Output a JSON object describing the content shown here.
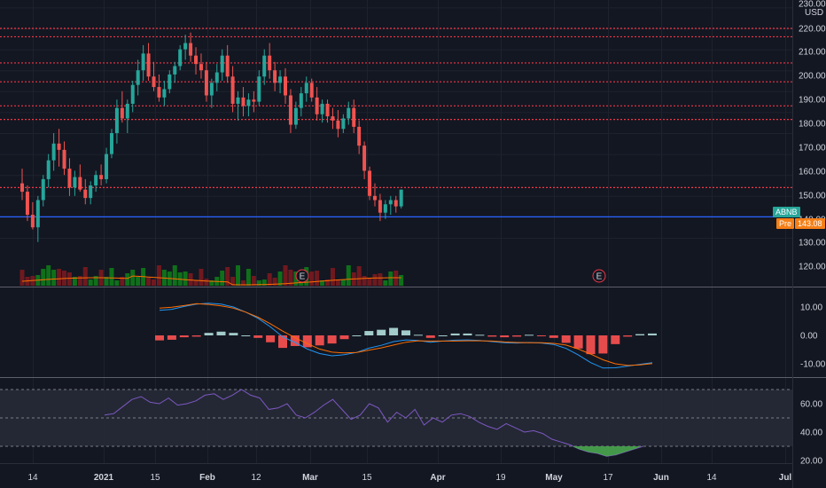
{
  "axis": {
    "currency": "USD",
    "price_ticks": [
      "230.00",
      "220.00",
      "210.00",
      "200.00",
      "190.00",
      "180.00",
      "170.00",
      "160.00",
      "150.00",
      "140.00",
      "130.00",
      "120.00"
    ],
    "macd_ticks": [
      "10.00",
      "0.00",
      "-10.00"
    ],
    "rsi_ticks": [
      "60.00",
      "40.00",
      "20.00"
    ],
    "time_ticks": [
      "14",
      "2021",
      "15",
      "Feb",
      "12",
      "Mar",
      "15",
      "Apr",
      "19",
      "May",
      "17",
      "Jun",
      "14",
      "Jul"
    ]
  },
  "labels": {
    "symbol": "ABNB",
    "pre_label": "Pre",
    "pre_price": "143.08",
    "earnings_marker": "E"
  },
  "colors": {
    "bg": "#131722",
    "up": "#26a69a",
    "down": "#ef5350",
    "support_line": "#2962ff",
    "resistance_line": "#f23645",
    "macd_line": "#2196f3",
    "signal_line": "#ff6d00",
    "rsi_line": "#7e57c2",
    "volume_up": "#0f7a1a",
    "volume_down": "#7a1a1f",
    "pre_tag": "#f57f17",
    "symbol_tag": "#26a69a"
  },
  "chart_data": {
    "type": "candlestick",
    "symbol": "ABNB",
    "resistance_levels": [
      220,
      216,
      203.5,
      194.5,
      183,
      176.5,
      144
    ],
    "support_level": 130,
    "candles": [
      [
        146,
        153,
        138,
        142
      ],
      [
        142,
        145,
        128,
        131
      ],
      [
        131,
        137,
        124,
        125
      ],
      [
        125,
        140,
        118,
        138
      ],
      [
        138,
        150,
        135,
        148
      ],
      [
        148,
        160,
        144,
        157
      ],
      [
        157,
        170,
        152,
        165
      ],
      [
        165,
        172,
        154,
        162
      ],
      [
        162,
        166,
        150,
        153
      ],
      [
        153,
        158,
        140,
        144
      ],
      [
        144,
        152,
        140,
        149
      ],
      [
        149,
        155,
        142,
        143
      ],
      [
        143,
        148,
        136,
        139
      ],
      [
        139,
        147,
        136,
        145
      ],
      [
        145,
        152,
        142,
        150
      ],
      [
        150,
        155,
        145,
        148
      ],
      [
        148,
        163,
        146,
        160
      ],
      [
        160,
        172,
        158,
        170
      ],
      [
        170,
        186,
        165,
        182
      ],
      [
        182,
        190,
        175,
        177
      ],
      [
        177,
        186,
        170,
        184
      ],
      [
        184,
        195,
        180,
        193
      ],
      [
        193,
        205,
        188,
        200
      ],
      [
        200,
        212,
        195,
        208
      ],
      [
        208,
        213,
        195,
        197
      ],
      [
        197,
        204,
        190,
        192
      ],
      [
        192,
        198,
        185,
        187
      ],
      [
        187,
        195,
        183,
        191
      ],
      [
        191,
        200,
        189,
        198
      ],
      [
        198,
        204,
        194,
        202
      ],
      [
        202,
        212,
        200,
        210
      ],
      [
        210,
        217,
        205,
        213
      ],
      [
        213,
        218,
        204,
        207
      ],
      [
        207,
        211,
        198,
        203
      ],
      [
        203,
        208,
        196,
        200
      ],
      [
        200,
        204,
        185,
        188
      ],
      [
        188,
        196,
        182,
        194
      ],
      [
        194,
        203,
        190,
        199
      ],
      [
        199,
        210,
        195,
        207
      ],
      [
        207,
        212,
        194,
        197
      ],
      [
        197,
        202,
        180,
        184
      ],
      [
        184,
        190,
        176,
        187
      ],
      [
        187,
        192,
        178,
        183
      ],
      [
        183,
        189,
        178,
        186
      ],
      [
        186,
        190,
        180,
        185
      ],
      [
        185,
        200,
        183,
        197
      ],
      [
        197,
        210,
        193,
        207
      ],
      [
        207,
        213,
        196,
        200
      ],
      [
        200,
        204,
        190,
        194
      ],
      [
        194,
        200,
        189,
        197
      ],
      [
        197,
        201,
        184,
        188
      ],
      [
        188,
        191,
        170,
        174
      ],
      [
        174,
        185,
        172,
        182
      ],
      [
        182,
        192,
        178,
        189
      ],
      [
        189,
        197,
        185,
        194
      ],
      [
        194,
        196,
        185,
        187
      ],
      [
        187,
        192,
        176,
        179
      ],
      [
        179,
        186,
        175,
        184
      ],
      [
        184,
        186,
        175,
        178
      ],
      [
        178,
        182,
        172,
        176
      ],
      [
        176,
        181,
        168,
        172
      ],
      [
        172,
        179,
        170,
        177
      ],
      [
        177,
        185,
        174,
        182
      ],
      [
        182,
        186,
        170,
        173
      ],
      [
        173,
        176,
        160,
        164
      ],
      [
        164,
        166,
        148,
        152
      ],
      [
        152,
        154,
        138,
        140
      ],
      [
        140,
        146,
        135,
        138
      ],
      [
        138,
        141,
        128,
        132
      ],
      [
        132,
        138,
        129,
        136
      ],
      [
        136,
        140,
        131,
        138
      ],
      [
        138,
        140,
        132,
        135
      ],
      [
        135,
        143,
        134,
        143
      ]
    ],
    "macd": [
      8.8,
      9.2,
      10.2,
      11.0,
      11.3,
      11.0,
      10.0,
      8.2,
      6.0,
      3.0,
      -0.5,
      -2.5,
      -4.8,
      -6.4,
      -7.2,
      -6.8,
      -6.0,
      -4.5,
      -3.5,
      -2.2,
      -1.6,
      -1.8,
      -2.4,
      -2.0,
      -1.7,
      -1.6,
      -1.8,
      -2.2,
      -2.6,
      -2.7,
      -2.5,
      -2.7,
      -3.2,
      -4.6,
      -6.9,
      -9.6,
      -11.5,
      -11.4,
      -10.8,
      -10.2,
      -9.6
    ],
    "signal": [
      9.6,
      9.9,
      10.5,
      11.2,
      10.9,
      10.4,
      9.6,
      8.2,
      6.4,
      4.1,
      1.5,
      -0.8,
      -2.9,
      -4.8,
      -5.9,
      -6.2,
      -6.0,
      -5.2,
      -4.4,
      -3.4,
      -2.4,
      -1.9,
      -2.0,
      -2.0,
      -2.0,
      -1.9,
      -1.9,
      -2.0,
      -2.3,
      -2.5,
      -2.6,
      -2.6,
      -2.8,
      -3.4,
      -4.8,
      -6.6,
      -8.6,
      -10.0,
      -10.6,
      -10.4,
      -9.9
    ],
    "rsi": [
      52,
      53,
      58,
      63,
      65,
      61,
      60,
      64,
      59,
      60,
      62,
      66,
      67,
      63,
      66,
      70,
      66,
      64,
      56,
      57,
      60,
      52,
      50,
      54,
      59,
      63,
      56,
      49,
      52,
      60,
      57,
      47,
      54,
      50,
      56,
      45,
      50,
      47,
      52,
      53,
      51,
      47,
      44,
      42,
      46,
      43,
      40,
      41,
      39,
      35,
      33,
      31,
      28,
      26,
      25,
      23,
      24,
      26,
      28,
      30
    ]
  }
}
